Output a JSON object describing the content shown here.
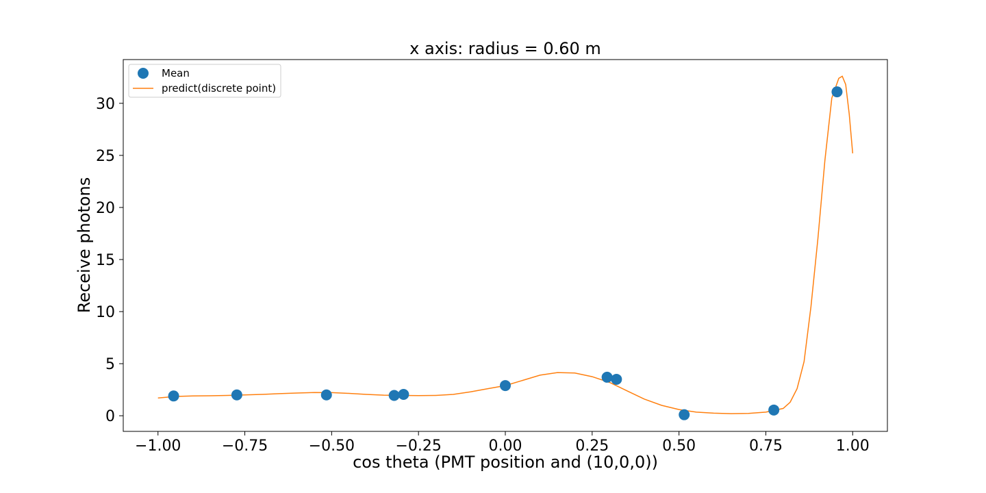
{
  "chart_data": {
    "type": "scatter",
    "title": "x axis: radius = 0.60 m",
    "xlabel": "cos theta (PMT position and (10,0,0))",
    "ylabel": "Receive photons",
    "xlim": [
      -1.1,
      1.1
    ],
    "ylim": [
      -1.5,
      34.2
    ],
    "x_ticks": [
      -1.0,
      -0.75,
      -0.5,
      -0.25,
      0.0,
      0.25,
      0.5,
      0.75,
      1.0
    ],
    "x_tick_labels": [
      "−1.00",
      "−0.75",
      "−0.50",
      "−0.25",
      "0.00",
      "0.25",
      "0.50",
      "0.75",
      "1.00"
    ],
    "y_ticks": [
      0,
      5,
      10,
      15,
      20,
      25,
      30
    ],
    "y_tick_labels": [
      "0",
      "5",
      "10",
      "15",
      "20",
      "25",
      "30"
    ],
    "grid": false,
    "legend_position": "top-left",
    "series": [
      {
        "name": "Mean",
        "kind": "scatter",
        "color": "#1f77b4",
        "x": [
          -0.955,
          -0.773,
          -0.515,
          -0.32,
          -0.293,
          0.0,
          0.293,
          0.32,
          0.515,
          0.773,
          0.955
        ],
        "y": [
          1.9,
          2.0,
          2.0,
          1.95,
          2.05,
          2.9,
          3.7,
          3.5,
          0.1,
          0.55,
          31.1
        ]
      },
      {
        "name": "predict(discrete point)",
        "kind": "line",
        "color": "#ff7f0e",
        "x": [
          -1.0,
          -0.95,
          -0.9,
          -0.85,
          -0.8,
          -0.75,
          -0.7,
          -0.65,
          -0.6,
          -0.55,
          -0.5,
          -0.45,
          -0.4,
          -0.35,
          -0.3,
          -0.25,
          -0.2,
          -0.15,
          -0.1,
          -0.05,
          0.0,
          0.05,
          0.1,
          0.15,
          0.2,
          0.25,
          0.3,
          0.35,
          0.4,
          0.45,
          0.5,
          0.55,
          0.6,
          0.65,
          0.7,
          0.75,
          0.8,
          0.82,
          0.84,
          0.86,
          0.88,
          0.9,
          0.92,
          0.94,
          0.96,
          0.97,
          0.98,
          0.99,
          1.0
        ],
        "y": [
          1.7,
          1.85,
          1.9,
          1.92,
          1.95,
          2.0,
          2.05,
          2.12,
          2.18,
          2.23,
          2.22,
          2.15,
          2.05,
          1.98,
          1.95,
          1.93,
          1.95,
          2.05,
          2.3,
          2.6,
          2.9,
          3.4,
          3.9,
          4.15,
          4.1,
          3.75,
          3.2,
          2.4,
          1.6,
          1.0,
          0.6,
          0.35,
          0.25,
          0.2,
          0.22,
          0.35,
          0.7,
          1.3,
          2.6,
          5.2,
          10.5,
          17.0,
          24.5,
          30.5,
          32.4,
          32.6,
          31.8,
          29.0,
          25.2
        ]
      }
    ]
  }
}
